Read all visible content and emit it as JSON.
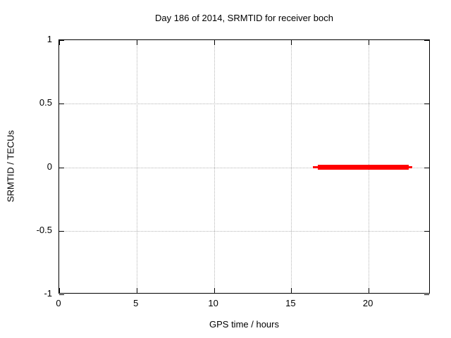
{
  "chart_data": {
    "type": "line",
    "title": "Day 186 of 2014, SRMTID for receiver boch",
    "xlabel": "GPS time / hours",
    "ylabel": "SRMTID / TECUs",
    "xlim": [
      0,
      24
    ],
    "ylim": [
      -1,
      1
    ],
    "xticks": [
      {
        "value": 0,
        "label": "0"
      },
      {
        "value": 5,
        "label": "5"
      },
      {
        "value": 10,
        "label": "10"
      },
      {
        "value": 15,
        "label": "15"
      },
      {
        "value": 20,
        "label": "20"
      }
    ],
    "yticks": [
      {
        "value": -1,
        "label": "-1"
      },
      {
        "value": -0.5,
        "label": "-0.5"
      },
      {
        "value": 0,
        "label": "0"
      },
      {
        "value": 0.5,
        "label": "0.5"
      },
      {
        "value": 1,
        "label": "1"
      }
    ],
    "grid": true,
    "grid_color": "#b5b5b5",
    "border_color": "#000000",
    "legend": "none",
    "series": [
      {
        "name": "SRMTID",
        "color": "#ff0000",
        "value": 0,
        "x_start": 16.4,
        "x_end": 22.8,
        "segments": [
          {
            "x_start": 16.4,
            "x_end": 22.8,
            "y": 0,
            "thickness_px": 3
          },
          {
            "x_start": 16.7,
            "x_end": 22.6,
            "y": 0,
            "thickness_px": 7
          }
        ]
      }
    ]
  }
}
